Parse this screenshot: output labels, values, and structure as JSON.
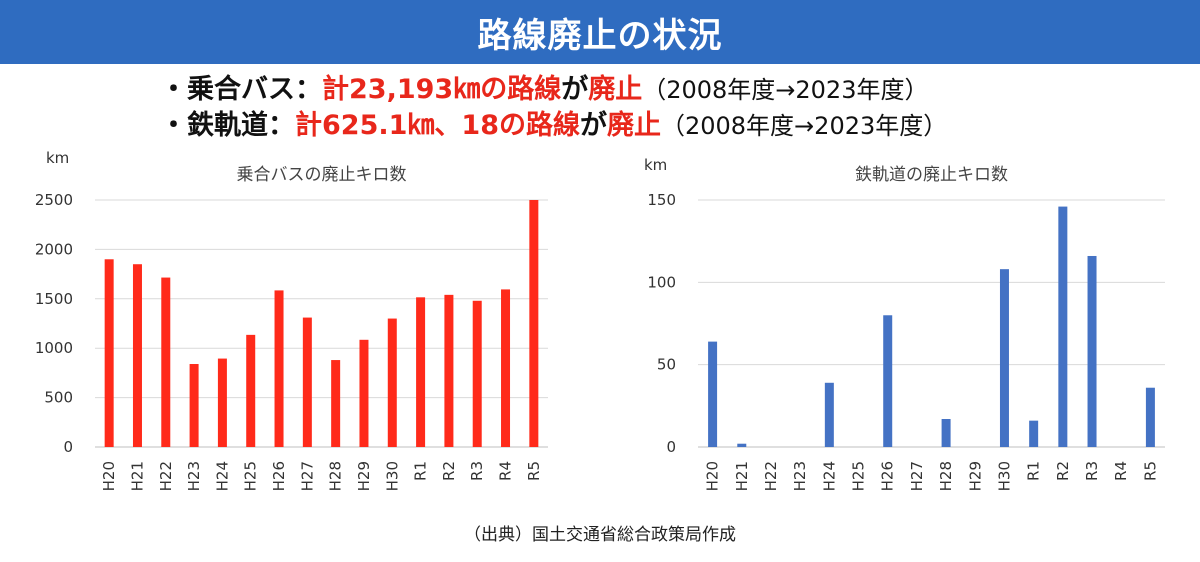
{
  "header": {
    "title": "路線廃止の状況"
  },
  "bullets": [
    {
      "prefix": "・乗合バス：",
      "red1": "計23,193㎞の路線",
      "mid": "が",
      "red2": "廃止",
      "period": "（2008年度→2023年度）"
    },
    {
      "prefix": "・鉄軌道：",
      "red1": "計625.1㎞、18の路線",
      "mid": "が",
      "red2": "廃止",
      "period": "（2008年度→2023年度）"
    }
  ],
  "source": "（出典）国土交通省総合政策局作成",
  "colors": {
    "banner": "#2f6cc0",
    "red": "#e8271b",
    "blue": "#4472c4"
  },
  "chart_data": [
    {
      "type": "bar",
      "title": "乗合バスの廃止キロ数",
      "unit": "km",
      "categories": [
        "H20",
        "H21",
        "H22",
        "H23",
        "H24",
        "H25",
        "H26",
        "H27",
        "H28",
        "H29",
        "H30",
        "R1",
        "R2",
        "R3",
        "R4",
        "R5"
      ],
      "values": [
        1900,
        1850,
        1715,
        840,
        895,
        1135,
        1585,
        1310,
        880,
        1085,
        1300,
        1515,
        1540,
        1480,
        1595,
        2500
      ],
      "yticks": [
        0,
        500,
        1000,
        1500,
        2000,
        2500
      ],
      "ylim": [
        0,
        2500
      ],
      "grid": true,
      "color": "#ff2a1a"
    },
    {
      "type": "bar",
      "title": "鉄軌道の廃止キロ数",
      "unit": "km",
      "categories": [
        "H20",
        "H21",
        "H22",
        "H23",
        "H24",
        "H25",
        "H26",
        "H27",
        "H28",
        "H29",
        "H30",
        "R1",
        "R2",
        "R3",
        "R4",
        "R5"
      ],
      "values": [
        64,
        2,
        0,
        0,
        39,
        0,
        80,
        0,
        17,
        0,
        108,
        16,
        146,
        116,
        0,
        36
      ],
      "yticks": [
        0,
        50,
        100,
        150
      ],
      "ylim": [
        0,
        150
      ],
      "grid": true,
      "color": "#4472c4"
    }
  ]
}
